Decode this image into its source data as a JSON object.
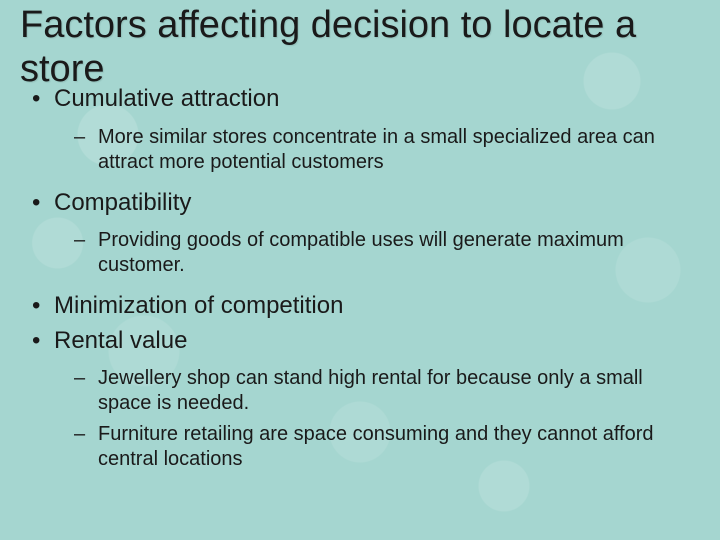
{
  "background_color": "#a5d6d0",
  "text_color": "#1a1a1a",
  "title_fontsize": 38,
  "level1_fontsize": 24,
  "level2_fontsize": 20,
  "title": "Factors affecting decision to locate a store",
  "bullets": {
    "b1": "Cumulative attraction",
    "b1_sub1": "More similar stores concentrate in a small specialized area can attract more potential customers",
    "b2": "Compatibility",
    "b2_sub1": "Providing goods of compatible uses will generate maximum customer.",
    "b3": "Minimization of competition",
    "b4": "Rental value",
    "b4_sub1": "Jewellery shop can stand high rental for because only a small space is needed.",
    "b4_sub2": "Furniture retailing are space consuming and they cannot afford central locations"
  }
}
